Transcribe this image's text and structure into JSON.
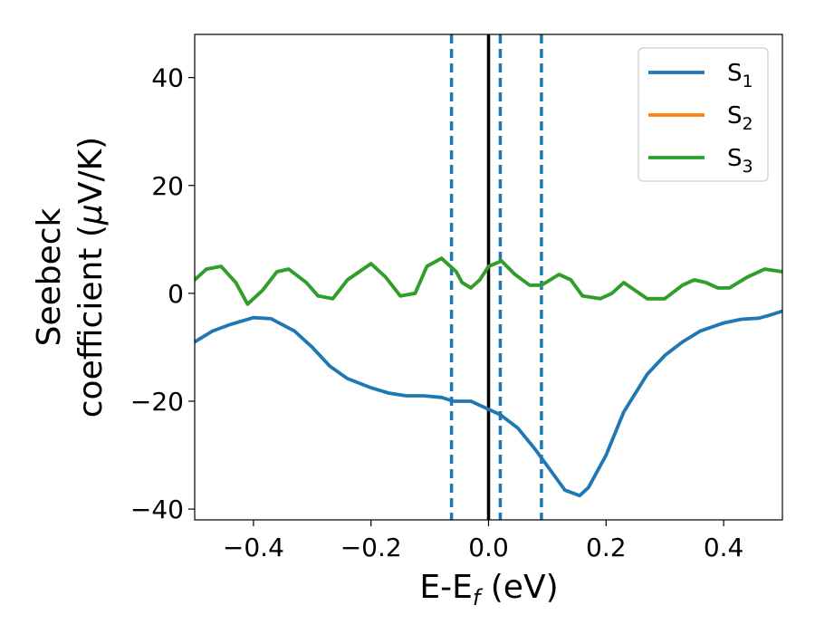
{
  "chart_data": {
    "type": "line",
    "xlabel": "E-E",
    "xlabel_sub": "f",
    "xlabel_unit": " (eV)",
    "ylabel_line1": "Seebeck",
    "ylabel_line2": "coefficient  (",
    "ylabel_mu": "μ",
    "ylabel_unit": "V/K)",
    "xlim": [
      -0.5,
      0.5
    ],
    "ylim": [
      -42,
      48
    ],
    "xticks": [
      -0.4,
      -0.2,
      0.0,
      0.2,
      0.4
    ],
    "xtick_labels": [
      "−0.4",
      "−0.2",
      "0.0",
      "0.2",
      "0.4"
    ],
    "yticks": [
      -40,
      -20,
      0,
      20,
      40
    ],
    "ytick_labels": [
      "−40",
      "−20",
      "0",
      "20",
      "40"
    ],
    "legend_position": "top-right",
    "grid": false,
    "vlines": [
      {
        "x": 0.0,
        "style": "solid",
        "color": "#000000"
      },
      {
        "x": -0.063,
        "style": "dashed",
        "color": "#1f77b4"
      },
      {
        "x": 0.02,
        "style": "dashed",
        "color": "#1f77b4"
      },
      {
        "x": 0.09,
        "style": "dashed",
        "color": "#1f77b4"
      }
    ],
    "series": [
      {
        "name": "S",
        "sub": "1",
        "color": "#1f77b4",
        "x": [
          -0.5,
          -0.47,
          -0.44,
          -0.4,
          -0.37,
          -0.33,
          -0.3,
          -0.27,
          -0.24,
          -0.2,
          -0.17,
          -0.14,
          -0.11,
          -0.08,
          -0.06,
          -0.03,
          0.0,
          0.02,
          0.05,
          0.08,
          0.11,
          0.13,
          0.155,
          0.17,
          0.2,
          0.23,
          0.27,
          0.3,
          0.33,
          0.36,
          0.4,
          0.43,
          0.46,
          0.48,
          0.5
        ],
        "y": [
          -9,
          -7,
          -5.8,
          -4.5,
          -4.7,
          -7,
          -10,
          -13.5,
          -15.8,
          -17.5,
          -18.5,
          -19,
          -19,
          -19.3,
          -20,
          -20,
          -21.5,
          -22.5,
          -25,
          -29,
          -33.5,
          -36.5,
          -37.5,
          -36,
          -30,
          -22,
          -15,
          -11.5,
          -9,
          -7,
          -5.5,
          -4.8,
          -4.6,
          -4,
          -3.3
        ]
      },
      {
        "name": "S",
        "sub": "2",
        "color": "#ff7f0e",
        "x": [
          -0.5,
          -0.48,
          -0.455,
          -0.43,
          -0.41,
          -0.385,
          -0.36,
          -0.34,
          -0.31,
          -0.29,
          -0.265,
          -0.24,
          -0.2,
          -0.175,
          -0.15,
          -0.125,
          -0.105,
          -0.08,
          -0.055,
          -0.045,
          -0.03,
          -0.015,
          0.0,
          0.022,
          0.045,
          0.07,
          0.09,
          0.12,
          0.14,
          0.16,
          0.19,
          0.21,
          0.23,
          0.25,
          0.27,
          0.3,
          0.33,
          0.35,
          0.37,
          0.39,
          0.41,
          0.44,
          0.47,
          0.5
        ],
        "y": [
          2.5,
          4.5,
          5,
          2,
          -2,
          0.5,
          4,
          4.5,
          2,
          -0.5,
          -1,
          2.5,
          5.5,
          3,
          -0.5,
          0,
          5,
          6.5,
          4,
          2,
          1,
          2.5,
          5,
          6,
          3.5,
          1.5,
          1.5,
          3.5,
          2.5,
          -0.5,
          -1,
          0,
          2,
          0.5,
          -1,
          -1,
          1.5,
          2.5,
          2,
          1,
          1,
          3,
          4.5,
          4
        ]
      },
      {
        "name": "S",
        "sub": "3",
        "color": "#2ca02c",
        "x": [
          -0.5,
          -0.48,
          -0.455,
          -0.43,
          -0.41,
          -0.385,
          -0.36,
          -0.34,
          -0.31,
          -0.29,
          -0.265,
          -0.24,
          -0.2,
          -0.175,
          -0.15,
          -0.125,
          -0.105,
          -0.08,
          -0.055,
          -0.045,
          -0.03,
          -0.015,
          0.0,
          0.022,
          0.045,
          0.07,
          0.09,
          0.12,
          0.14,
          0.16,
          0.19,
          0.21,
          0.23,
          0.25,
          0.27,
          0.3,
          0.33,
          0.35,
          0.37,
          0.39,
          0.41,
          0.44,
          0.47,
          0.5
        ],
        "y": [
          2.5,
          4.5,
          5,
          2,
          -2,
          0.5,
          4,
          4.5,
          2,
          -0.5,
          -1,
          2.5,
          5.5,
          3,
          -0.5,
          0,
          5,
          6.5,
          4,
          2,
          1,
          2.5,
          5,
          6,
          3.5,
          1.5,
          1.5,
          3.5,
          2.5,
          -0.5,
          -1,
          0,
          2,
          0.5,
          -1,
          -1,
          1.5,
          2.5,
          2,
          1,
          1,
          3,
          4.5,
          4
        ]
      }
    ]
  }
}
